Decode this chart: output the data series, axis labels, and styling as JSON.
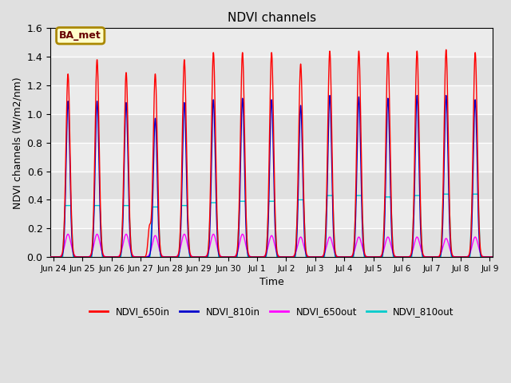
{
  "title": "NDVI channels",
  "xlabel": "Time",
  "ylabel": "NDVI channels (W/m2/nm)",
  "ylim": [
    0.0,
    1.6
  ],
  "yticks": [
    0.0,
    0.2,
    0.4,
    0.6,
    0.8,
    1.0,
    1.2,
    1.4,
    1.6
  ],
  "bg_color": "#e0e0e0",
  "plot_bg_color": "#ebebeb",
  "colors": {
    "NDVI_650in": "#ff0000",
    "NDVI_810in": "#0000cc",
    "NDVI_650out": "#ff00ff",
    "NDVI_810out": "#00cccc"
  },
  "annotation_text": "BA_met",
  "annotation_facecolor": "#ffffcc",
  "annotation_edgecolor": "#aa8800",
  "annotation_textcolor": "#660000",
  "peak_centers": [
    0.5,
    1.5,
    2.5,
    3.5,
    4.5,
    5.5,
    6.5,
    7.5,
    8.5,
    9.5,
    10.5,
    11.5,
    12.5,
    13.5,
    14.5
  ],
  "h650in": [
    1.28,
    1.38,
    1.29,
    1.28,
    1.38,
    1.43,
    1.43,
    1.43,
    1.35,
    1.44,
    1.44,
    1.43,
    1.44,
    1.45,
    1.43
  ],
  "h810in": [
    1.09,
    1.09,
    1.08,
    0.97,
    1.08,
    1.1,
    1.11,
    1.1,
    1.06,
    1.13,
    1.12,
    1.11,
    1.13,
    1.13,
    1.1
  ],
  "h650out": [
    0.16,
    0.16,
    0.16,
    0.15,
    0.16,
    0.16,
    0.16,
    0.15,
    0.14,
    0.14,
    0.14,
    0.14,
    0.14,
    0.13,
    0.14
  ],
  "h810out": [
    0.36,
    0.36,
    0.36,
    0.35,
    0.36,
    0.38,
    0.39,
    0.39,
    0.4,
    0.43,
    0.43,
    0.42,
    0.43,
    0.44,
    0.44
  ],
  "w650in": 0.07,
  "w810in": 0.065,
  "w650out": 0.1,
  "w810out_inner": 0.1,
  "w810out_outer": 0.18,
  "xlim_start": -0.1,
  "xlim_end": 15.1,
  "tick_positions": [
    0,
    1,
    2,
    3,
    4,
    5,
    6,
    7,
    8,
    9,
    10,
    11,
    12,
    13,
    14,
    15
  ],
  "tick_labels": [
    "Jun 24",
    "Jun 25",
    "Jun 26",
    "Jun 27",
    "Jun 28",
    "Jun 29",
    "Jun 30",
    "Jul 1",
    "Jul 2",
    "Jul 3",
    "Jul 4",
    "Jul 5",
    "Jul 6",
    "Jul 7",
    "Jul 8",
    "Jul 9"
  ]
}
